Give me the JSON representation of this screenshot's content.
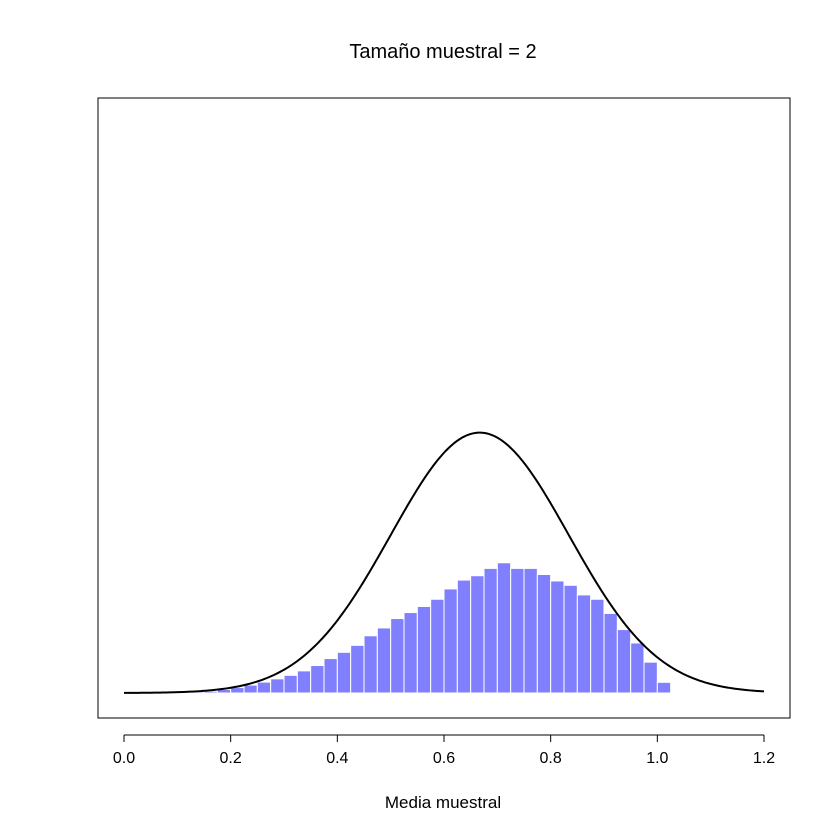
{
  "chart_data": {
    "type": "bar",
    "title": "Tamaño muestral = 2",
    "xlabel": "Media muestral",
    "ylabel": "",
    "xlim": [
      -0.05,
      1.25
    ],
    "ylim": [
      0,
      2.5
    ],
    "grid": false,
    "x_ticks": [
      0.0,
      0.2,
      0.4,
      0.6,
      0.8,
      1.0,
      1.2
    ],
    "x_tick_labels": [
      "0.0",
      "0.2",
      "0.4",
      "0.6",
      "0.8",
      "1.0",
      "1.2"
    ],
    "bin_width": 0.025,
    "bins": [
      {
        "x0": 0.125,
        "x1": 0.15,
        "density": 0.012
      },
      {
        "x0": 0.15,
        "x1": 0.175,
        "density": 0.016
      },
      {
        "x0": 0.175,
        "x1": 0.2,
        "density": 0.032
      },
      {
        "x0": 0.2,
        "x1": 0.225,
        "density": 0.05
      },
      {
        "x0": 0.225,
        "x1": 0.25,
        "density": 0.073
      },
      {
        "x0": 0.25,
        "x1": 0.275,
        "density": 0.1
      },
      {
        "x0": 0.275,
        "x1": 0.3,
        "density": 0.13
      },
      {
        "x0": 0.3,
        "x1": 0.325,
        "density": 0.162
      },
      {
        "x0": 0.325,
        "x1": 0.35,
        "density": 0.203
      },
      {
        "x0": 0.35,
        "x1": 0.375,
        "density": 0.252
      },
      {
        "x0": 0.375,
        "x1": 0.4,
        "density": 0.316
      },
      {
        "x0": 0.4,
        "x1": 0.425,
        "density": 0.373
      },
      {
        "x0": 0.425,
        "x1": 0.45,
        "density": 0.437
      },
      {
        "x0": 0.45,
        "x1": 0.475,
        "density": 0.525
      },
      {
        "x0": 0.475,
        "x1": 0.5,
        "density": 0.597
      },
      {
        "x0": 0.5,
        "x1": 0.525,
        "density": 0.683
      },
      {
        "x0": 0.525,
        "x1": 0.55,
        "density": 0.738
      },
      {
        "x0": 0.55,
        "x1": 0.575,
        "density": 0.794
      },
      {
        "x0": 0.575,
        "x1": 0.6,
        "density": 0.86
      },
      {
        "x0": 0.6,
        "x1": 0.625,
        "density": 0.955
      },
      {
        "x0": 0.625,
        "x1": 0.65,
        "density": 1.036
      },
      {
        "x0": 0.65,
        "x1": 0.675,
        "density": 1.076
      },
      {
        "x0": 0.675,
        "x1": 0.7,
        "density": 1.143
      },
      {
        "x0": 0.7,
        "x1": 0.725,
        "density": 1.195
      },
      {
        "x0": 0.725,
        "x1": 0.75,
        "density": 1.143
      },
      {
        "x0": 0.75,
        "x1": 0.775,
        "density": 1.143
      },
      {
        "x0": 0.775,
        "x1": 0.8,
        "density": 1.087
      },
      {
        "x0": 0.8,
        "x1": 0.825,
        "density": 1.028
      },
      {
        "x0": 0.825,
        "x1": 0.85,
        "density": 0.988
      },
      {
        "x0": 0.85,
        "x1": 0.875,
        "density": 0.9
      },
      {
        "x0": 0.875,
        "x1": 0.9,
        "density": 0.86
      },
      {
        "x0": 0.9,
        "x1": 0.925,
        "density": 0.73
      },
      {
        "x0": 0.925,
        "x1": 0.95,
        "density": 0.582
      },
      {
        "x0": 0.95,
        "x1": 0.975,
        "density": 0.459
      },
      {
        "x0": 0.975,
        "x1": 1.0,
        "density": 0.283
      },
      {
        "x0": 1.0,
        "x1": 1.025,
        "density": 0.098
      }
    ],
    "bar_color": "#8080ff",
    "bar_edge_color": "#ffffff",
    "curve": {
      "type": "normal-density",
      "mean": 0.667,
      "sd": 0.167,
      "x_range": [
        0,
        1.2
      ],
      "color": "#000000"
    }
  }
}
